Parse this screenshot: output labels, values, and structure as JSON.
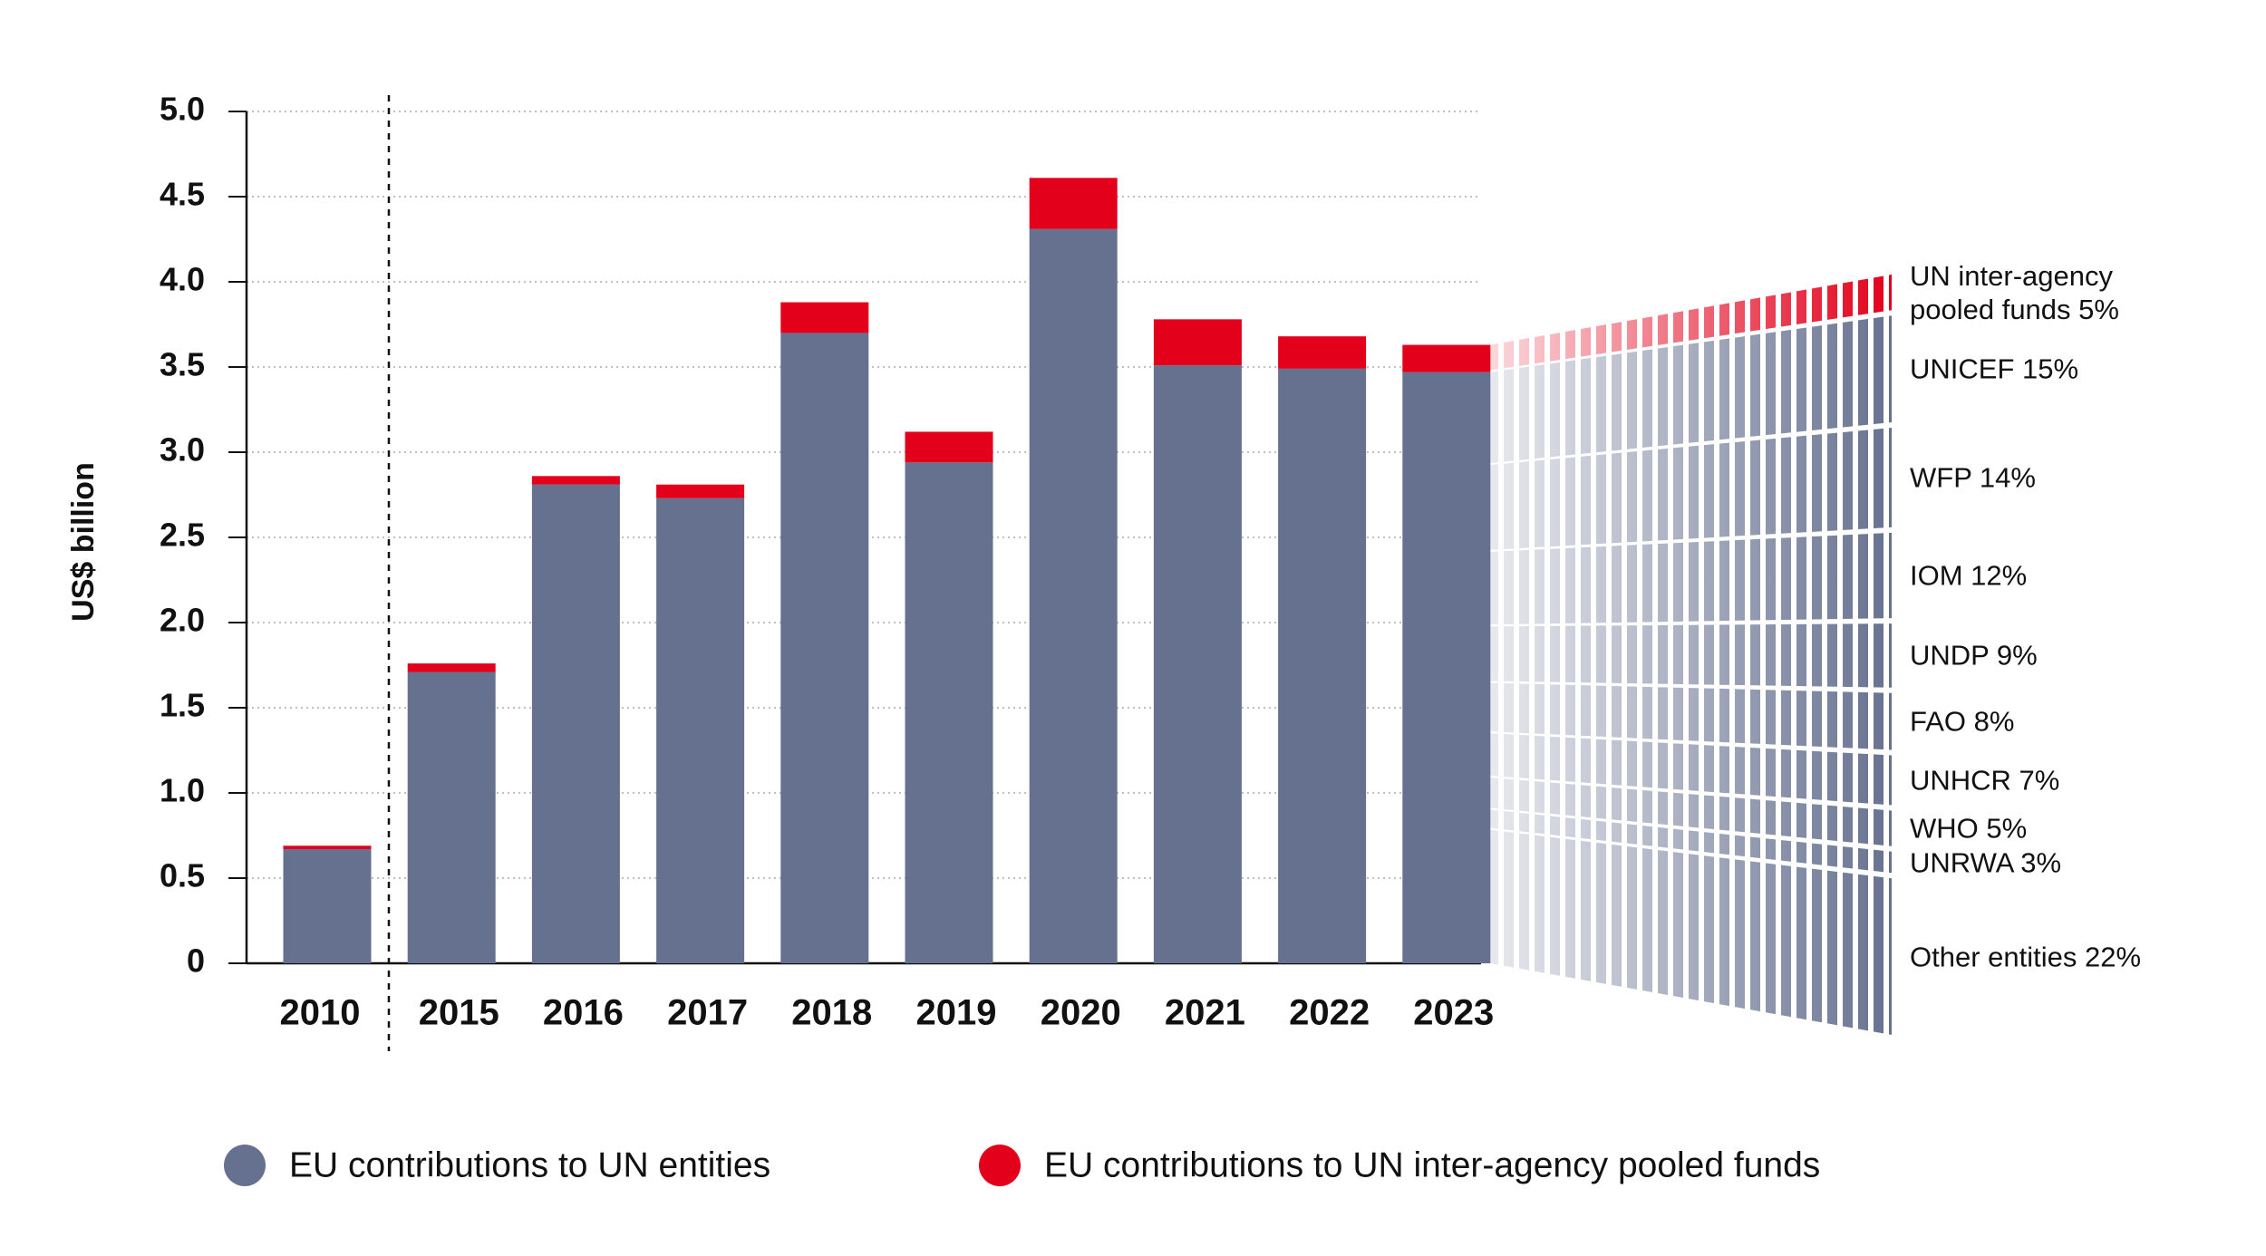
{
  "chart_data": {
    "type": "stacked_bar",
    "y_label": "US$ billion",
    "categories": [
      "2010",
      "2015",
      "2016",
      "2017",
      "2018",
      "2019",
      "2020",
      "2021",
      "2022",
      "2023"
    ],
    "series": [
      {
        "name": "EU contributions to UN entities",
        "color": "#667190",
        "values": [
          0.67,
          1.71,
          2.81,
          2.73,
          3.7,
          2.94,
          4.31,
          3.51,
          3.49,
          3.47
        ]
      },
      {
        "name": "EU contributions to UN inter-agency pooled funds",
        "color": "#e2001a",
        "values": [
          0.02,
          0.05,
          0.05,
          0.08,
          0.18,
          0.18,
          0.3,
          0.27,
          0.19,
          0.16
        ]
      }
    ],
    "ylim": [
      0,
      5
    ],
    "yticks": [
      0,
      {
        "value": 0.5,
        "label": "0.5"
      },
      {
        "value": 1,
        "label": "1.0"
      },
      {
        "value": 1.5,
        "label": "1.5"
      },
      {
        "value": 2,
        "label": "2.0"
      },
      {
        "value": 2.5,
        "label": "2.5"
      },
      {
        "value": 3,
        "label": "3.0"
      },
      {
        "value": 3.5,
        "label": "3.5"
      },
      {
        "value": 4,
        "label": "4.0"
      },
      {
        "value": 4.5,
        "label": "4.5"
      },
      {
        "value": 5,
        "label": "5.0"
      }
    ],
    "grid": true,
    "legend": "bottom",
    "breakdown": {
      "values": [
        5,
        15,
        14,
        12,
        9,
        8,
        7,
        5,
        3,
        22
      ],
      "value_labels": [
        "UN inter-agency pooled funds 5%",
        "UNICEF 15%",
        "WFP 14%",
        "IOM 12%",
        "UNDP 9%",
        "FAO 8%",
        "UNHCR 7%",
        "WHO 5%",
        "UNRWA 3%",
        "Other entities 22%"
      ]
    }
  }
}
